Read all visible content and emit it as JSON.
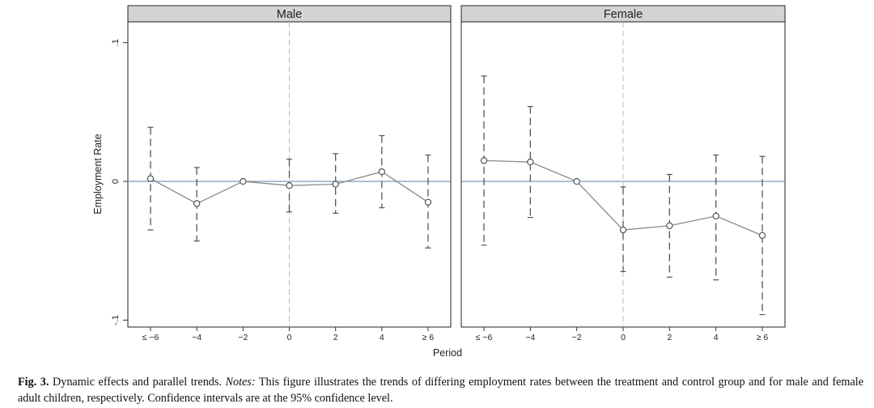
{
  "chart_data": {
    "type": "line",
    "x_categories": [
      "≤ −6",
      "−4",
      "−2",
      "0",
      "2",
      "4",
      "≥ 6"
    ],
    "xlabel": "Period",
    "ylabel": "Employment Rate",
    "yticks": [
      {
        "value": 0.1,
        "label": ".1"
      },
      {
        "value": 0,
        "label": "0"
      },
      {
        "value": -0.1,
        "label": "-.1"
      }
    ],
    "ylim": [
      -0.105,
      0.115
    ],
    "reference_x": "0",
    "reference_y": 0,
    "grid": false,
    "error_bars": "dashed 95% confidence intervals",
    "colors": {
      "line": "#8a8a8a",
      "marker": "#555555",
      "ci": "#555555",
      "zero_line": "#6b8fb5",
      "vline": "#bbbbbb",
      "panel_header": "#d4d4d4"
    },
    "panels": [
      {
        "title": "Male",
        "estimates": [
          0.002,
          -0.016,
          0.0,
          -0.003,
          -0.002,
          0.007,
          -0.015
        ],
        "ci_low": [
          -0.035,
          -0.043,
          null,
          -0.022,
          -0.023,
          -0.019,
          -0.048
        ],
        "ci_high": [
          0.039,
          0.01,
          null,
          0.016,
          0.02,
          0.033,
          0.019
        ]
      },
      {
        "title": "Female",
        "estimates": [
          0.015,
          0.014,
          0.0,
          -0.035,
          -0.032,
          -0.025,
          -0.039
        ],
        "ci_low": [
          -0.046,
          -0.026,
          null,
          -0.065,
          -0.069,
          -0.071,
          -0.096
        ],
        "ci_high": [
          0.076,
          0.054,
          null,
          -0.004,
          0.005,
          0.019,
          0.018
        ]
      }
    ]
  },
  "caption": {
    "label": "Fig. 3.",
    "title": "Dynamic effects and parallel trends.",
    "notes_label": "Notes:",
    "notes_text": "This figure illustrates the trends of differing employment rates between the treatment and control group and for male and female adult children, respectively. Confidence intervals are at the 95% confidence level."
  }
}
